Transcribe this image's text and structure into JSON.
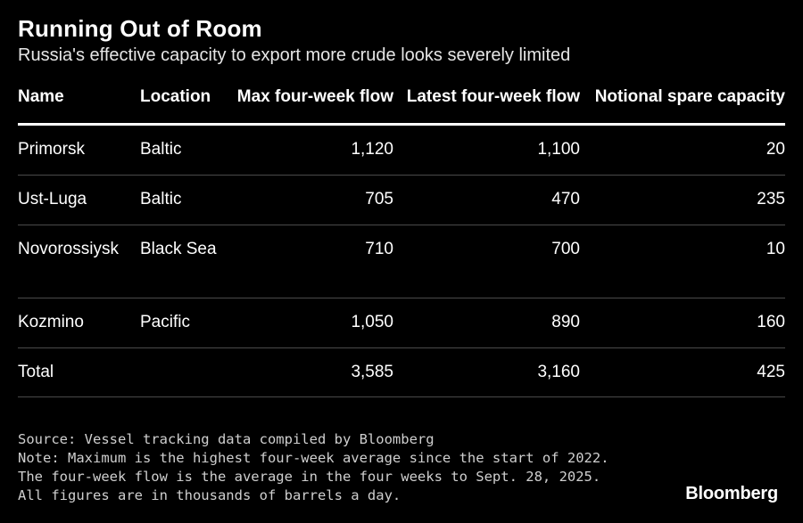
{
  "header": {
    "title": "Running Out of Room",
    "subtitle": "Russia's effective capacity to export more crude looks severely limited"
  },
  "chart_data": {
    "type": "table",
    "columns": [
      "Name",
      "Location",
      "Max four-week flow",
      "Latest four-week flow",
      "Notional spare capacity"
    ],
    "rows": [
      [
        "Primorsk",
        "Baltic",
        "1,120",
        "1,100",
        "20"
      ],
      [
        "Ust-Luga",
        "Baltic",
        "705",
        "470",
        "235"
      ],
      [
        "Novorossiysk",
        "Black Sea",
        "710",
        "700",
        "10"
      ],
      [
        "Kozmino",
        "Pacific",
        "1,050",
        "890",
        "160"
      ],
      [
        "Total",
        "",
        "3,585",
        "3,160",
        "425"
      ]
    ]
  },
  "footer": {
    "source": "Source: Vessel tracking data compiled by Bloomberg",
    "note": "Note: Maximum is the highest four-week average since the start of 2022. The four-week flow is the average in the four weeks to Sept. 28, 2025. All figures are in thousands of barrels a day.",
    "brand": "Bloomberg"
  }
}
